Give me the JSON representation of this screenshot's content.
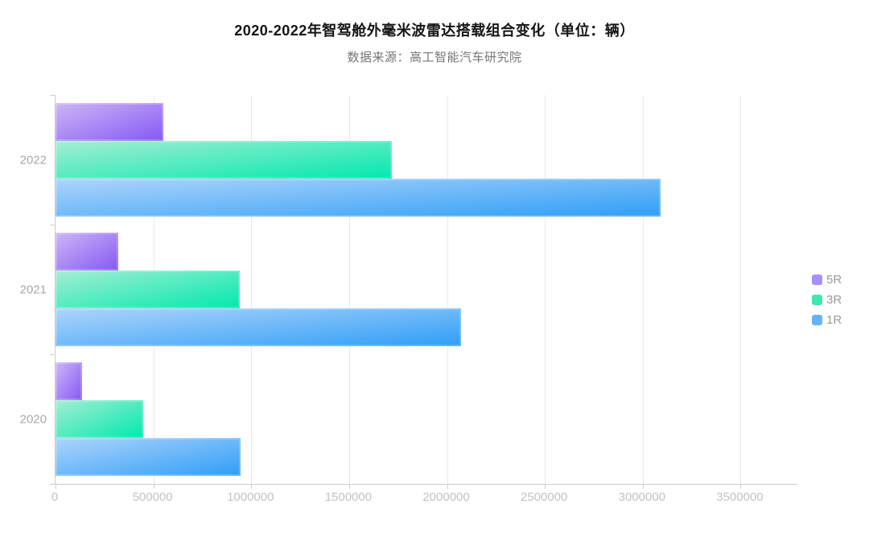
{
  "title": "2020-2022年智驾舱外毫米波雷达搭载组合变化（单位：辆）",
  "subtitle": "数据来源：高工智能汽车研究院",
  "chart_data": {
    "type": "bar",
    "orientation": "horizontal",
    "title": "2020-2022年智驾舱外毫米波雷达搭载组合变化（单位：辆）",
    "subtitle": "数据来源：高工智能汽车研究院",
    "categories": [
      "2022",
      "2021",
      "2020"
    ],
    "series": [
      {
        "name": "5R",
        "values": [
          550000,
          320000,
          135000
        ],
        "gradient_start": "#cdb6f6",
        "gradient_end": "#8559f4",
        "legend_color": "#a78ef8"
      },
      {
        "name": "3R",
        "values": [
          1720000,
          940000,
          450000
        ],
        "gradient_start": "#a5eed2",
        "gradient_end": "#00e9ae",
        "legend_color": "#3fe8b1"
      },
      {
        "name": "1R",
        "values": [
          3090000,
          2070000,
          945000
        ],
        "gradient_start": "#aed5fb",
        "gradient_end": "#2f9ef7",
        "legend_color": "#66b4f8"
      }
    ],
    "xlabel": "",
    "ylabel": "",
    "xlim": [
      0,
      3790000
    ],
    "x_ticks": [
      0,
      500000,
      1000000,
      1500000,
      2000000,
      2500000,
      3000000,
      3500000
    ],
    "x_tick_labels": [
      "0",
      "500000",
      "1000000",
      "1500000",
      "2000000",
      "2500000",
      "3000000",
      "3500000"
    ],
    "grid": true,
    "legend_position": "right",
    "legend": [
      "5R",
      "3R",
      "1R"
    ]
  },
  "colors": {
    "axis_line": "#cccccc",
    "gridline": "#e8e8e8",
    "tick_label": "#c2c2c2",
    "category_label": "#a9a9a9",
    "legend_label": "#999999",
    "title_text": "#141414",
    "subtitle_text": "#757575"
  }
}
